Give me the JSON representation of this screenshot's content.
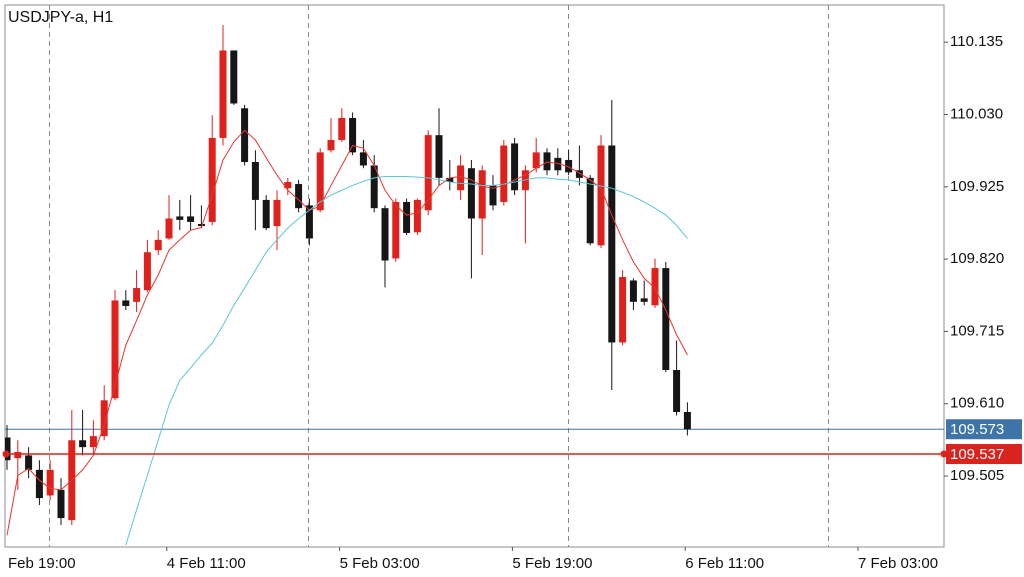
{
  "chart_data": {
    "type": "candlestick",
    "title": "USDJPY-a, H1",
    "up_color": "#e0201b",
    "down_color": "#161616",
    "open": [
      109.561,
      109.531,
      109.535,
      109.514,
      109.477,
      109.485,
      109.441,
      109.557,
      109.547,
      109.563,
      109.618,
      109.76,
      109.758,
      109.775,
      109.833,
      109.85,
      109.882,
      109.882,
      109.871,
      109.874,
      109.996,
      110.123,
      110.039,
      109.961,
      109.906,
      109.868,
      109.923,
      109.929,
      109.898,
      109.891,
      109.978,
      109.993,
      110.025,
      109.975,
      109.956,
      109.894,
      109.821,
      109.903,
      109.859,
      109.891,
      110.0,
      109.938,
      109.92,
      109.952,
      109.879,
      109.927,
      109.903,
      109.988,
      109.92,
      109.952,
      109.975,
      109.967,
      109.964,
      109.949,
      109.938,
      109.84,
      109.985,
      109.699,
      109.789,
      109.763,
      109.753,
      109.807,
      109.659,
      109.598
    ],
    "high": [
      109.579,
      109.557,
      109.547,
      109.528,
      109.528,
      109.502,
      109.601,
      109.601,
      109.586,
      109.637,
      109.775,
      109.775,
      109.804,
      109.848,
      109.862,
      109.913,
      109.906,
      109.913,
      109.898,
      110.029,
      110.16,
      110.123,
      110.044,
      109.978,
      109.913,
      109.92,
      109.938,
      109.935,
      109.908,
      109.981,
      110.025,
      110.039,
      110.033,
      109.993,
      109.971,
      109.898,
      109.908,
      109.908,
      109.908,
      110.007,
      110.039,
      109.964,
      109.971,
      109.964,
      109.956,
      109.942,
      109.993,
      109.996,
      109.956,
      109.996,
      109.981,
      109.981,
      109.978,
      109.985,
      109.942,
      110.0,
      110.051,
      109.804,
      109.792,
      109.789,
      109.821,
      109.816,
      109.702,
      109.612
    ],
    "low": [
      109.514,
      109.485,
      109.502,
      109.463,
      109.47,
      109.434,
      109.434,
      109.535,
      109.535,
      109.557,
      109.615,
      109.746,
      109.743,
      109.772,
      109.826,
      109.848,
      109.862,
      109.862,
      109.865,
      109.869,
      109.985,
      110.044,
      109.956,
      109.862,
      109.862,
      109.833,
      109.913,
      109.888,
      109.84,
      109.888,
      109.975,
      109.99,
      109.971,
      109.952,
      109.888,
      109.779,
      109.816,
      109.855,
      109.855,
      109.884,
      109.927,
      109.92,
      109.906,
      109.792,
      109.826,
      109.891,
      109.898,
      109.913,
      109.843,
      109.946,
      109.942,
      109.942,
      109.942,
      109.927,
      109.84,
      109.836,
      109.63,
      109.695,
      109.746,
      109.753,
      109.749,
      109.656,
      109.593,
      109.564
    ],
    "close": [
      109.528,
      109.54,
      109.514,
      109.473,
      109.514,
      109.444,
      109.557,
      109.547,
      109.563,
      109.615,
      109.76,
      109.752,
      109.778,
      109.83,
      109.848,
      109.879,
      109.877,
      109.874,
      109.868,
      109.996,
      110.123,
      110.046,
      109.961,
      109.906,
      109.865,
      109.906,
      109.932,
      109.894,
      109.85,
      109.975,
      109.993,
      110.025,
      109.975,
      109.956,
      109.894,
      109.818,
      109.903,
      109.858,
      109.906,
      110.0,
      109.938,
      109.932,
      109.956,
      109.879,
      109.949,
      109.898,
      109.985,
      109.92,
      109.949,
      109.975,
      109.949,
      109.949,
      109.946,
      109.938,
      109.843,
      109.985,
      109.699,
      109.794,
      109.758,
      109.758,
      109.807,
      109.659,
      109.598,
      109.573
    ],
    "series": [
      {
        "color": "#e8352e",
        "values": [
          109.419,
          109.506,
          109.516,
          109.499,
          109.487,
          109.485,
          109.499,
          109.514,
          109.535,
          109.579,
          109.637,
          109.695,
          109.731,
          109.768,
          109.797,
          109.833,
          109.848,
          109.862,
          109.866,
          109.913,
          109.964,
          109.99,
          110.007,
          109.993,
          109.967,
          109.942,
          109.92,
          109.906,
          109.891,
          109.897,
          109.927,
          109.956,
          109.985,
          109.981,
          109.956,
          109.92,
          109.898,
          109.884,
          109.887,
          109.906,
          109.927,
          109.938,
          109.94,
          109.935,
          109.926,
          109.923,
          109.927,
          109.935,
          109.942,
          109.952,
          109.961,
          109.959,
          109.954,
          109.945,
          109.935,
          109.923,
          109.884,
          109.848,
          109.816,
          109.792,
          109.778,
          109.746,
          109.71,
          109.681
        ]
      },
      {
        "color": "#5cc6d6",
        "values": [
          null,
          null,
          null,
          null,
          null,
          null,
          null,
          null,
          null,
          null,
          null,
          109.405,
          109.456,
          109.506,
          109.557,
          109.608,
          109.644,
          109.662,
          109.681,
          109.698,
          109.724,
          109.753,
          109.778,
          109.804,
          109.83,
          109.848,
          109.865,
          109.879,
          109.891,
          109.903,
          109.913,
          109.92,
          109.927,
          109.933,
          109.938,
          109.94,
          109.94,
          109.94,
          109.939,
          109.938,
          109.935,
          109.932,
          109.93,
          109.929,
          109.927,
          109.927,
          109.929,
          109.932,
          109.935,
          109.938,
          109.938,
          109.936,
          109.935,
          109.932,
          109.929,
          109.926,
          109.923,
          109.917,
          109.911,
          109.903,
          109.894,
          109.884,
          109.869,
          109.85
        ]
      }
    ],
    "ask_line": {
      "value": 109.573,
      "color": "#3f74a8"
    },
    "bid_line": {
      "value": 109.537,
      "color": "#d9231d"
    },
    "ylim": [
      109.402,
      110.189
    ],
    "yticks": [
      110.135,
      {
        "value": 110.03,
        "label": "110.030"
      },
      109.925,
      {
        "value": 109.82,
        "label": "109.820"
      },
      109.715,
      {
        "value": 109.61,
        "label": "109.610"
      },
      109.505
    ],
    "xticks": [
      "Feb 19:00",
      "4 Feb 11:00",
      "5 Feb 03:00",
      "5 Feb 19:00",
      "6 Feb 11:00",
      "7 Feb 03:00"
    ]
  }
}
